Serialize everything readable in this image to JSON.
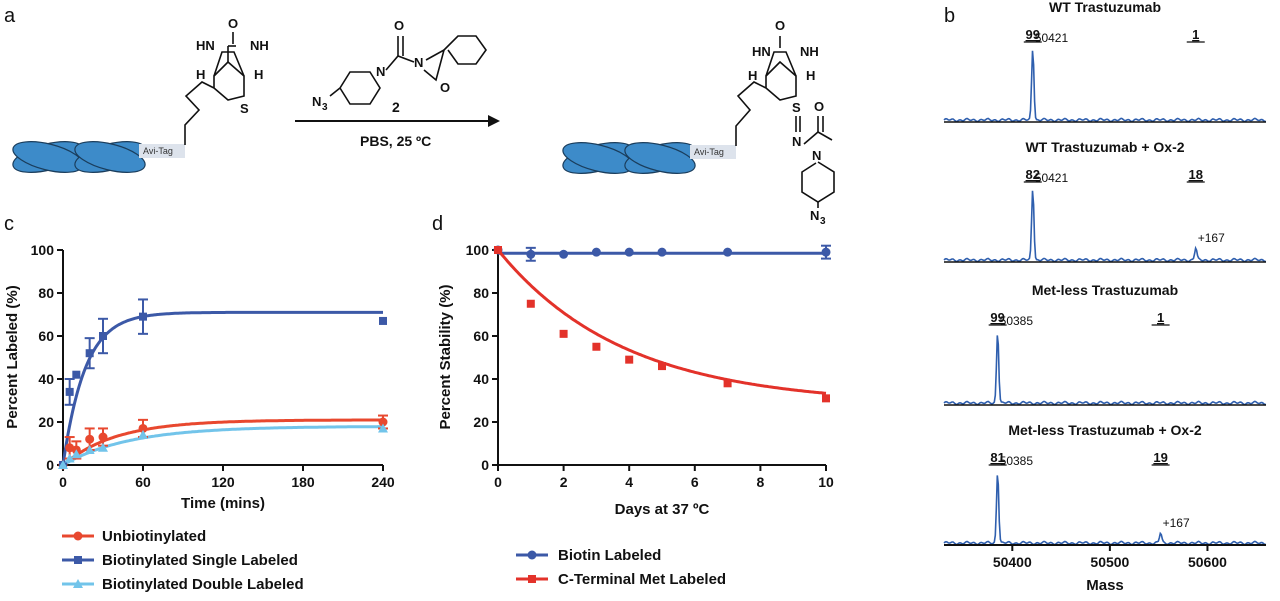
{
  "panels": {
    "a": "a",
    "b": "b",
    "c": "c",
    "d": "d"
  },
  "scheme": {
    "reagent_number": "2",
    "conditions": "PBS, 25 ºC",
    "avi_tag": "Avi-Tag",
    "atoms": {
      "O": "O",
      "NH": "NH",
      "HN": "HN",
      "H": "H",
      "S": "S",
      "N": "N",
      "N3": "N",
      "sub3": "3"
    },
    "colors": {
      "protein": "#3d8bc9",
      "tag": "#dde3ec"
    }
  },
  "chart_data": [
    {
      "id": "c",
      "type": "scatter",
      "xlabel": "Time (mins)",
      "ylabel": "Percent Labeled (%)",
      "xlim": [
        0,
        240
      ],
      "ylim": [
        0,
        100
      ],
      "xticks": [
        0,
        60,
        120,
        180,
        240
      ],
      "yticks": [
        0,
        20,
        40,
        60,
        80,
        100
      ],
      "grid": false,
      "legend_position": "bottom",
      "series": [
        {
          "name": "Unbiotinylated",
          "color": "#e8482f",
          "marker": "circle",
          "x": [
            0,
            5,
            10,
            20,
            30,
            60,
            240
          ],
          "y": [
            0,
            8,
            7,
            12,
            13,
            17,
            20
          ],
          "err": [
            0,
            5,
            4,
            5,
            4,
            4,
            3
          ],
          "fit": {
            "plateau": 21,
            "k": 0.025
          }
        },
        {
          "name": "Biotinylated Single Labeled",
          "color": "#3c59a7",
          "marker": "square",
          "x": [
            0,
            5,
            10,
            20,
            30,
            60,
            240
          ],
          "y": [
            0,
            34,
            42,
            52,
            60,
            69,
            67
          ],
          "err": [
            0,
            6,
            0,
            7,
            8,
            8,
            0
          ],
          "fit": {
            "plateau": 71,
            "k": 0.06
          }
        },
        {
          "name": "Biotinylated Double Labeled",
          "color": "#72c4ea",
          "marker": "triangle",
          "x": [
            0,
            5,
            10,
            20,
            30,
            60,
            240
          ],
          "y": [
            0,
            3,
            5,
            7,
            8,
            14,
            17
          ],
          "err": [
            0,
            0,
            0,
            0,
            0,
            0,
            0
          ],
          "fit": {
            "plateau": 18,
            "k": 0.02
          }
        }
      ]
    },
    {
      "id": "d",
      "type": "scatter",
      "xlabel": "Days at 37 ºC",
      "ylabel": "Percent Stability (%)",
      "xlim": [
        0,
        10
      ],
      "ylim": [
        0,
        100
      ],
      "xticks": [
        0,
        2,
        4,
        6,
        8,
        10
      ],
      "yticks": [
        0,
        20,
        40,
        60,
        80,
        100
      ],
      "grid": false,
      "legend_position": "bottom",
      "series": [
        {
          "name": "Biotin Labeled",
          "color": "#3c59a7",
          "marker": "circle",
          "x": [
            0,
            1,
            2,
            3,
            4,
            5,
            7,
            10
          ],
          "y": [
            100,
            98,
            98,
            99,
            99,
            99,
            99,
            99
          ],
          "err": [
            0,
            3,
            0,
            0,
            0,
            0,
            0,
            3
          ],
          "fit": {
            "type": "flat",
            "value": 98.5
          }
        },
        {
          "name": "C-Terminal Met Labeled",
          "color": "#e3322a",
          "marker": "square",
          "x": [
            0,
            1,
            2,
            3,
            4,
            5,
            7,
            10
          ],
          "y": [
            100,
            75,
            61,
            55,
            49,
            46,
            38,
            31
          ],
          "err": [
            0,
            0,
            0,
            0,
            0,
            0,
            0,
            0
          ],
          "fit": {
            "type": "decay",
            "plateau": 28,
            "k": 0.26
          }
        }
      ]
    },
    {
      "id": "b",
      "type": "line",
      "xlabel": "Mass",
      "xlim": [
        50330,
        50660
      ],
      "xticks": [
        50400,
        50500,
        50600
      ],
      "line_color": "#2f5fae",
      "spectra": [
        {
          "title": "WT Trastuzumab",
          "pct": [
            "99",
            "1"
          ],
          "peaks": [
            {
              "mass": 50421,
              "label": "50421",
              "rel": 1.0
            },
            {
              "mass": 50588,
              "label": "",
              "rel": 0.0
            }
          ]
        },
        {
          "title": "WT Trastuzumab + Ox-2",
          "pct": [
            "82",
            "18"
          ],
          "peaks": [
            {
              "mass": 50421,
              "label": "50421",
              "rel": 1.0
            },
            {
              "mass": 50588,
              "label": "+167",
              "rel": 0.17
            }
          ]
        },
        {
          "title": "Met-less Trastuzumab",
          "pct": [
            "99",
            "1"
          ],
          "peaks": [
            {
              "mass": 50385,
              "label": "50385",
              "rel": 1.0
            },
            {
              "mass": 50552,
              "label": "",
              "rel": 0.0
            }
          ]
        },
        {
          "title": "Met-less Trastuzumab + Ox-2",
          "pct": [
            "81",
            "19"
          ],
          "peaks": [
            {
              "mass": 50385,
              "label": "50385",
              "rel": 1.0
            },
            {
              "mass": 50552,
              "label": "+167",
              "rel": 0.14
            }
          ]
        }
      ]
    }
  ]
}
